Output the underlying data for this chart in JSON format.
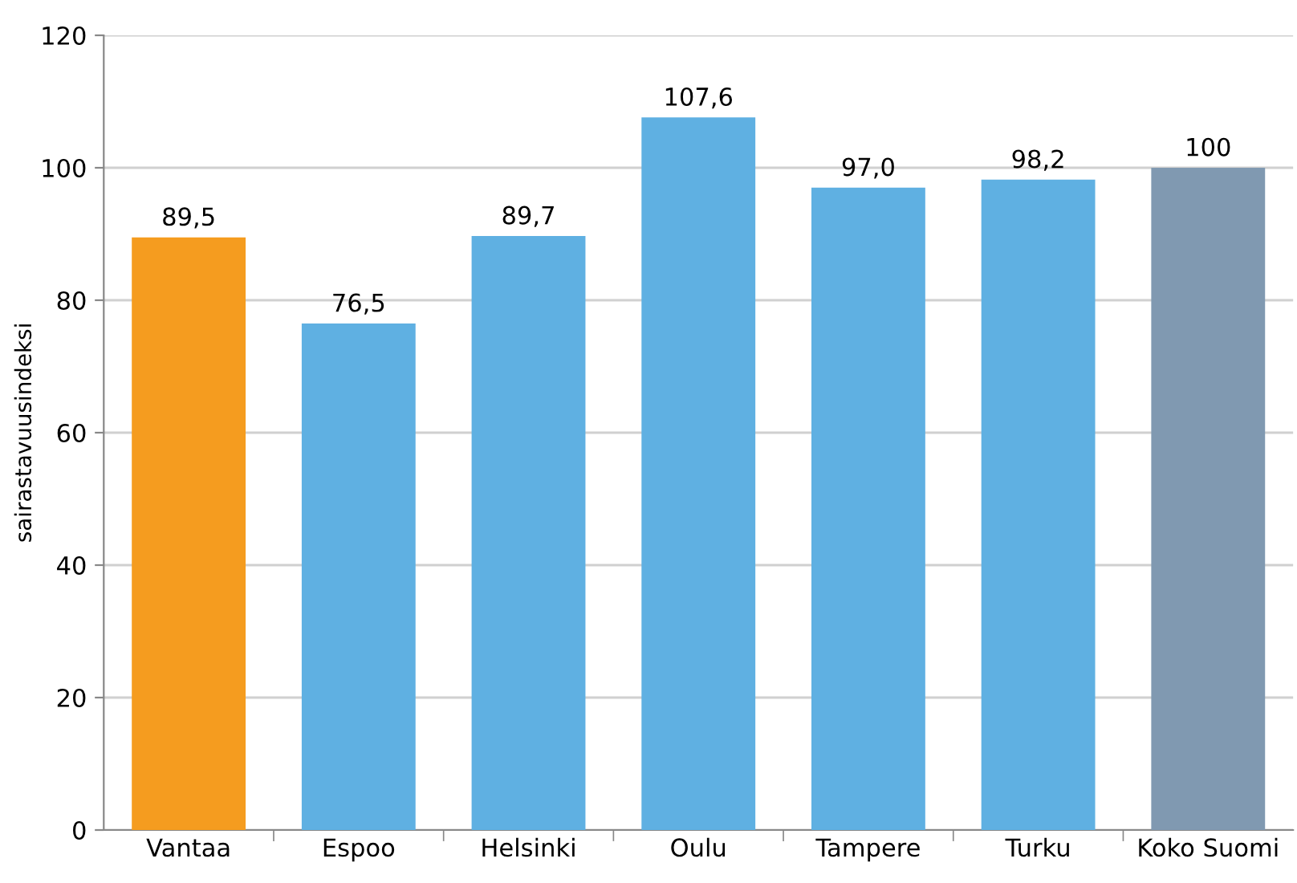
{
  "chart_data": {
    "type": "bar",
    "ylabel": "sairastavuusindeksi",
    "categories": [
      "Vantaa",
      "Espoo",
      "Helsinki",
      "Oulu",
      "Tampere",
      "Turku",
      "Koko Suomi"
    ],
    "values": [
      89.5,
      76.5,
      89.7,
      107.6,
      97.0,
      98.2,
      100
    ],
    "colors": [
      "#f59c1f",
      "#5fb0e2",
      "#5fb0e2",
      "#5fb0e2",
      "#5fb0e2",
      "#5fb0e2",
      "#8099b1"
    ],
    "value_labels": [
      "89,5",
      "76,5",
      "89,7",
      "107,6",
      "97,0",
      "98,2",
      "100"
    ],
    "ylim": [
      0,
      120
    ],
    "yticks": [
      0,
      20,
      40,
      60,
      80,
      100,
      120
    ],
    "grid": "y",
    "legend": false
  }
}
